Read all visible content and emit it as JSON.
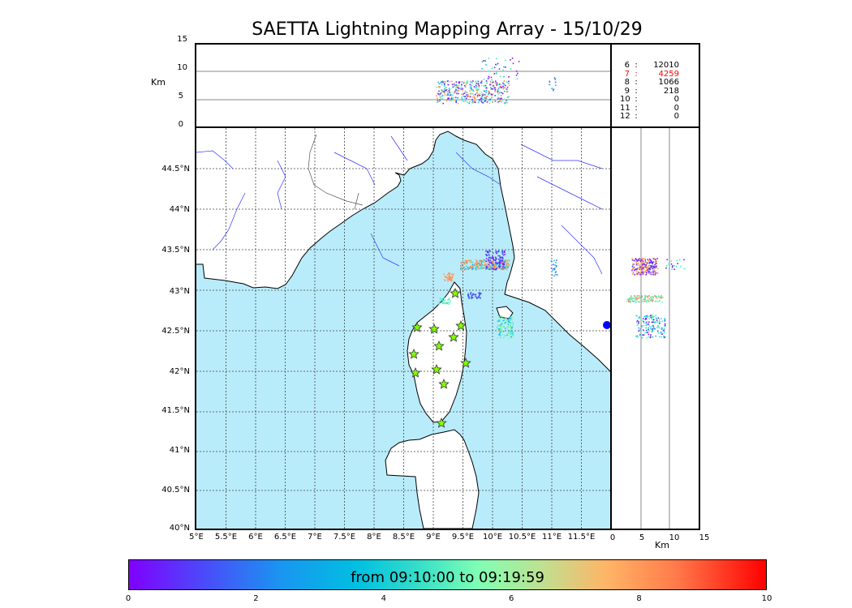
{
  "title": "SAETTA Lightning Mapping Array - 15/10/29",
  "top_panel": {
    "ylabel": "Km",
    "yticks": [
      "15",
      "10",
      "5",
      "0"
    ]
  },
  "side_panel": {
    "xlabel": "Km",
    "xticks": [
      "0",
      "5",
      "10",
      "15"
    ]
  },
  "station_counts": [
    {
      "stations": "6",
      "sep": ":",
      "count": "12010",
      "color": "#000000"
    },
    {
      "stations": "7",
      "sep": ":",
      "count": "4259",
      "color": "#ff0000"
    },
    {
      "stations": "8",
      "sep": ":",
      "count": "1066",
      "color": "#000000"
    },
    {
      "stations": "9",
      "sep": ":",
      "count": "218",
      "color": "#000000"
    },
    {
      "stations": "10",
      "sep": ":",
      "count": "0",
      "color": "#000000"
    },
    {
      "stations": "11",
      "sep": ":",
      "count": "0",
      "color": "#000000"
    },
    {
      "stations": "12",
      "sep": ":",
      "count": "0",
      "color": "#000000"
    }
  ],
  "map": {
    "lat_labels": [
      "44.5°N",
      "44°N",
      "43.5°N",
      "43°N",
      "42.5°N",
      "42°N",
      "41.5°N",
      "41°N",
      "40.5°N",
      "40°N"
    ],
    "lon_labels": [
      "5°E",
      "5.5°E",
      "6°E",
      "6.5°E",
      "7°E",
      "7.5°E",
      "8°E",
      "8.5°E",
      "9°E",
      "9.5°E",
      "10°E",
      "10.5°E",
      "11°E",
      "11.5°E"
    ],
    "sea_color": "#b9ecfb",
    "station_marker_color": "#7fff00"
  },
  "colorbar": {
    "caption": "from 09:10:00 to 09:19:59",
    "ticks": [
      "0",
      "2",
      "4",
      "6",
      "8",
      "10"
    ],
    "range": [
      0,
      10
    ]
  }
}
